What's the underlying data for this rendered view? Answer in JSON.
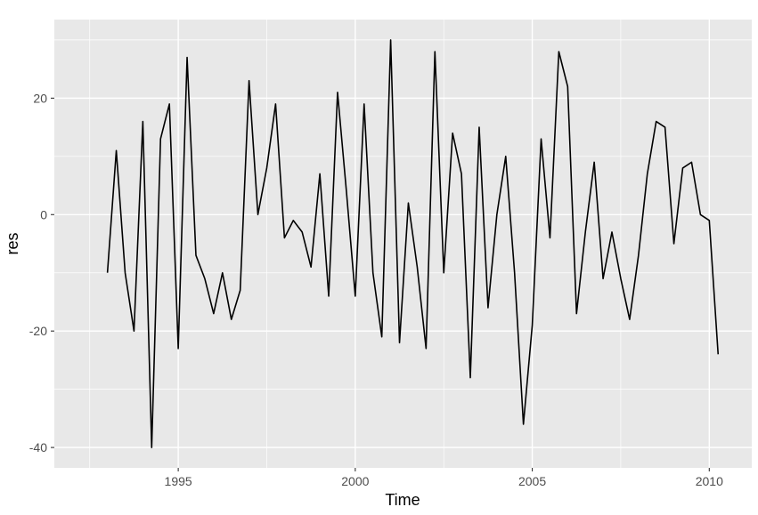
{
  "chart_data": {
    "type": "line",
    "xlabel": "Time",
    "ylabel": "res",
    "xlim": [
      1991.5,
      2011.2
    ],
    "ylim": [
      -43.5,
      33.5
    ],
    "x_ticks": [
      1995,
      2000,
      2005,
      2010
    ],
    "y_ticks": [
      -40,
      -20,
      0,
      20
    ],
    "x_tick_labels": [
      "1995",
      "2000",
      "2005",
      "2010"
    ],
    "y_tick_labels": [
      "-40",
      "-20",
      "0",
      "20"
    ],
    "grid": true,
    "panel_background": "#e8e8e8",
    "grid_color": "#ffffff",
    "line_color": "#000000",
    "series": [
      {
        "x": [
          1993.0,
          1993.25,
          1993.5,
          1993.75,
          1994.0,
          1994.25,
          1994.5,
          1994.75,
          1995.0,
          1995.25,
          1995.5,
          1995.75,
          1996.0,
          1996.25,
          1996.5,
          1996.75,
          1997.0,
          1997.25,
          1997.5,
          1997.75,
          1998.0,
          1998.25,
          1998.5,
          1998.75,
          1999.0,
          1999.25,
          1999.5,
          1999.75,
          2000.0,
          2000.25,
          2000.5,
          2000.75,
          2001.0,
          2001.25,
          2001.5,
          2001.75,
          2002.0,
          2002.25,
          2002.5,
          2002.75,
          2003.0,
          2003.25,
          2003.5,
          2003.75,
          2004.0,
          2004.25,
          2004.5,
          2004.75,
          2005.0,
          2005.25,
          2005.5,
          2005.75,
          2006.0,
          2006.25,
          2006.5,
          2006.75,
          2007.0,
          2007.25,
          2007.5,
          2007.75,
          2008.0,
          2008.25,
          2008.5,
          2008.75,
          2009.0,
          2009.25,
          2009.5,
          2009.75,
          2010.0,
          2010.25
        ],
        "values": [
          -10,
          11,
          -10,
          -20,
          16,
          -40,
          13,
          19,
          -23,
          27,
          -7,
          -11,
          -17,
          -10,
          -18,
          -13,
          23,
          0,
          8,
          19,
          -4,
          -1,
          -3,
          -9,
          7,
          -14,
          21,
          4,
          -14,
          19,
          -10,
          -21,
          30,
          -22,
          2,
          -9,
          -23,
          28,
          -10,
          14,
          7,
          -28,
          15,
          -16,
          0,
          10,
          -10,
          -36,
          -19,
          13,
          -4,
          28,
          22,
          -17,
          -3,
          9,
          -11,
          -3,
          -11,
          -18,
          -7,
          7,
          16,
          15,
          -5,
          8,
          9,
          0,
          -1,
          -24
        ]
      }
    ]
  }
}
